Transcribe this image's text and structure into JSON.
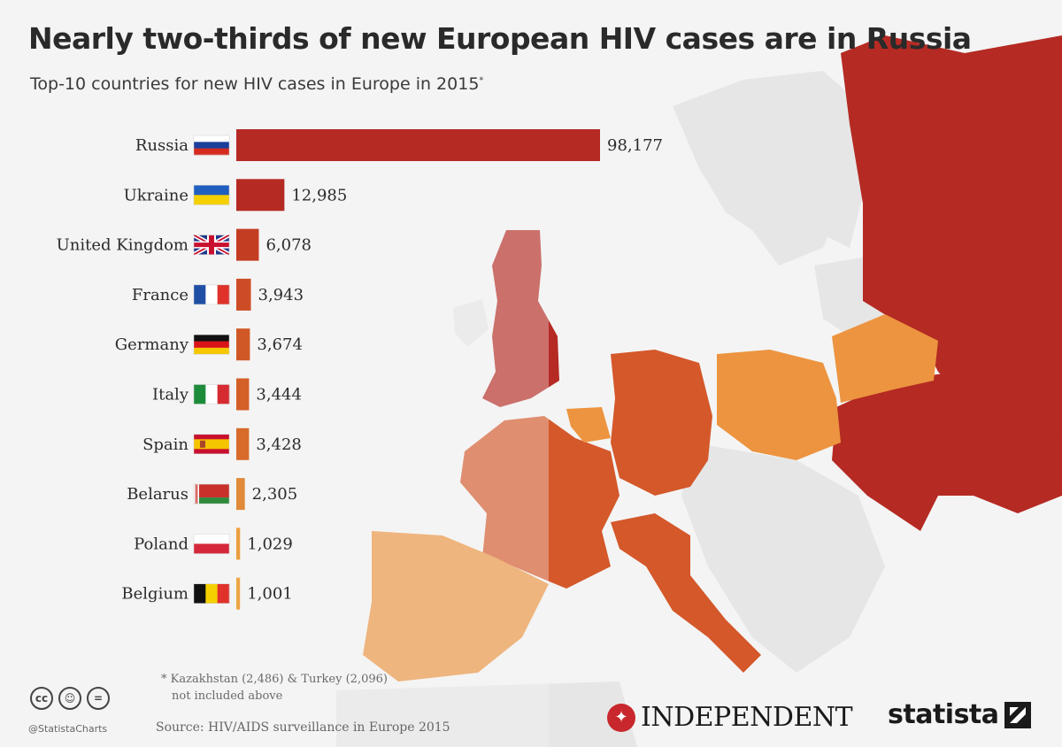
{
  "header": {
    "title": "Nearly two-thirds of new European HIV cases are in Russia",
    "subtitle": "Top-10 countries for new HIV cases in Europe in 2015",
    "subtitle_mark": "*"
  },
  "chart_data": {
    "type": "bar",
    "orientation": "horizontal",
    "title": "Nearly two-thirds of new European HIV cases are in Russia",
    "subtitle": "Top-10 countries for new HIV cases in Europe in 2015*",
    "categories": [
      "Russia",
      "Ukraine",
      "United Kingdom",
      "France",
      "Germany",
      "Italy",
      "Spain",
      "Belarus",
      "Poland",
      "Belgium"
    ],
    "values": [
      98177,
      12985,
      6078,
      3943,
      3674,
      3444,
      3428,
      2305,
      1029,
      1001
    ],
    "value_labels": [
      "98,177",
      "12,985",
      "6,078",
      "3,943",
      "3,674",
      "3,444",
      "3,428",
      "2,305",
      "1,029",
      "1,001"
    ],
    "bar_colors": [
      "#b52a23",
      "#b52a23",
      "#c33d22",
      "#cc4d25",
      "#d05826",
      "#d45f27",
      "#d86a2a",
      "#e08a3a",
      "#ec9e40",
      "#eda646"
    ],
    "xlim": [
      0,
      98177
    ],
    "xlabel": "",
    "ylabel": "",
    "grid": false,
    "legend": "none"
  },
  "flags": [
    {
      "country": "Russia",
      "icon": "russia-flag-icon"
    },
    {
      "country": "Ukraine",
      "icon": "ukraine-flag-icon"
    },
    {
      "country": "United Kingdom",
      "icon": "uk-flag-icon"
    },
    {
      "country": "France",
      "icon": "france-flag-icon"
    },
    {
      "country": "Germany",
      "icon": "germany-flag-icon"
    },
    {
      "country": "Italy",
      "icon": "italy-flag-icon"
    },
    {
      "country": "Spain",
      "icon": "spain-flag-icon"
    },
    {
      "country": "Belarus",
      "icon": "belarus-flag-icon"
    },
    {
      "country": "Poland",
      "icon": "poland-flag-icon"
    },
    {
      "country": "Belgium",
      "icon": "belgium-flag-icon"
    }
  ],
  "footnote": {
    "line1": "* Kazakhstan (2,486) & Turkey (2,096)",
    "line2": "not included above"
  },
  "footer": {
    "license_icons": [
      "cc-icon",
      "by-icon",
      "nd-icon"
    ],
    "handle": "@StatistaCharts",
    "source": "Source: HIV/AIDS surveillance in Europe 2015",
    "independent_logo": "INDEPENDENT",
    "statista_logo": "statista"
  },
  "colors": {
    "dark_red": "#b52a23",
    "mid_orange": "#d4582a",
    "light_orange": "#ec9440",
    "land_grey": "#e6e6e6",
    "background": "#f4f4f4"
  }
}
